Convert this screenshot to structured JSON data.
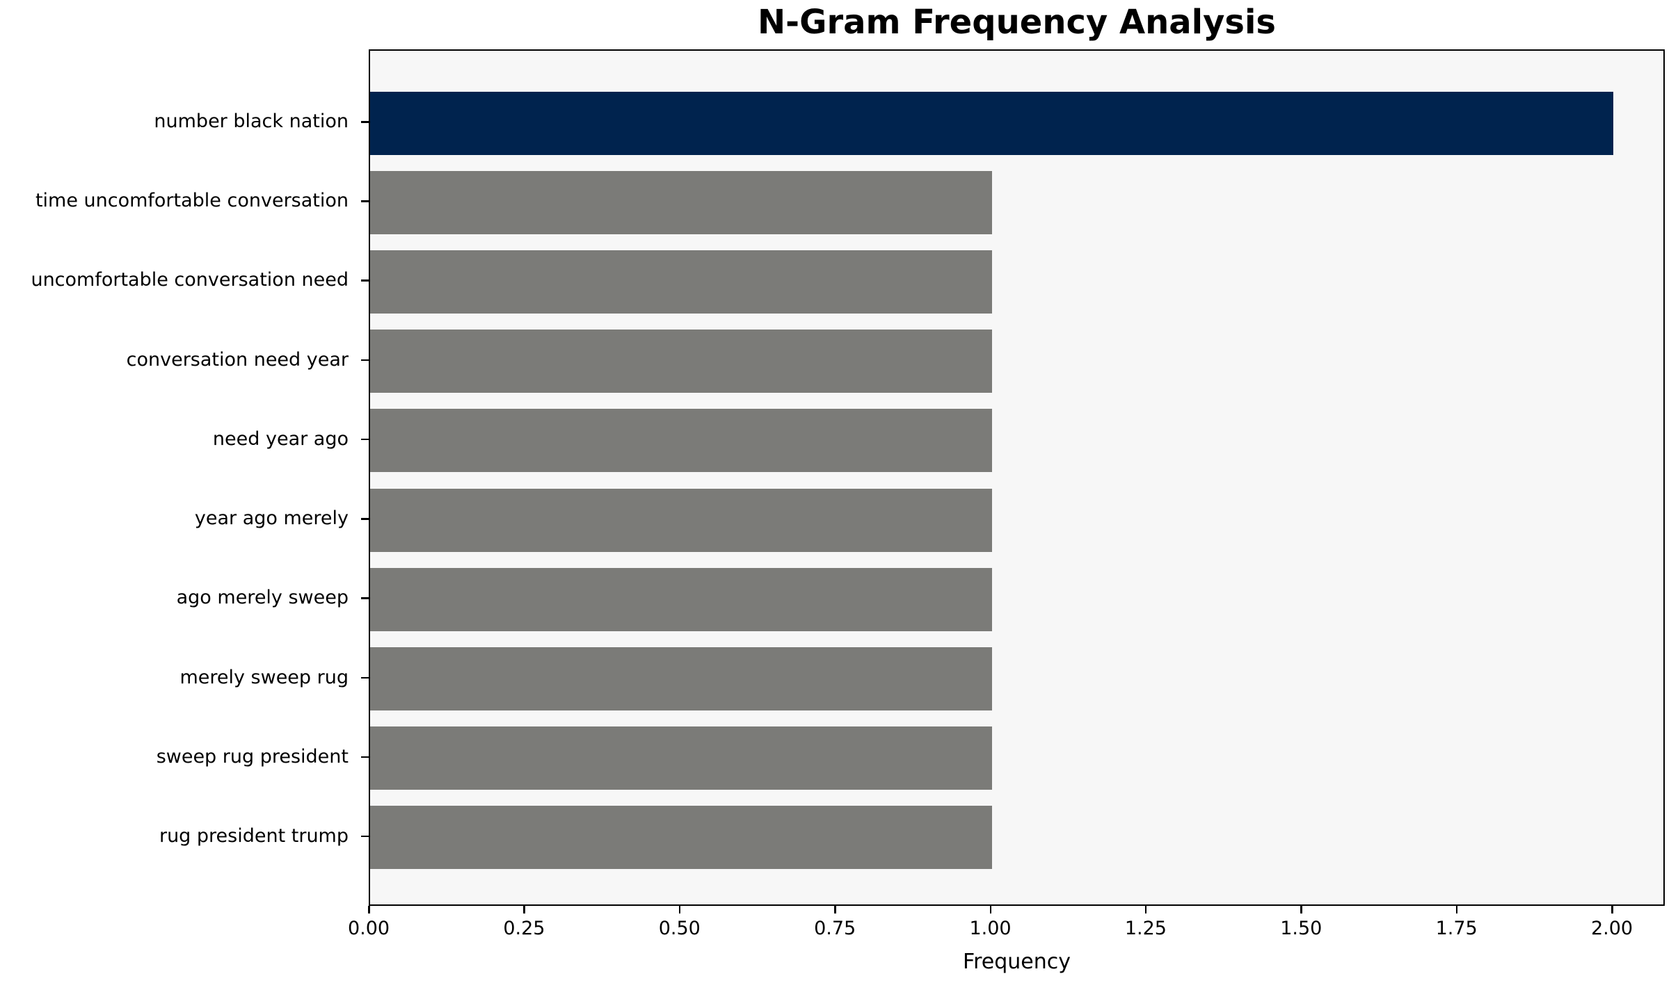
{
  "title": "N-Gram Frequency Analysis",
  "chart_data": {
    "type": "bar",
    "orientation": "horizontal",
    "title": "N-Gram Frequency Analysis",
    "xlabel": "Frequency",
    "ylabel": "",
    "categories": [
      "number black nation",
      "time uncomfortable conversation",
      "uncomfortable conversation need",
      "conversation need year",
      "need year ago",
      "year ago merely",
      "ago merely sweep",
      "merely sweep rug",
      "sweep rug president",
      "rug president trump"
    ],
    "values": [
      2,
      1,
      1,
      1,
      1,
      1,
      1,
      1,
      1,
      1
    ],
    "bar_colors": [
      "#00234e",
      "#7b7b78",
      "#7b7b78",
      "#7b7b78",
      "#7b7b78",
      "#7b7b78",
      "#7b7b78",
      "#7b7b78",
      "#7b7b78",
      "#7b7b78"
    ],
    "x_ticks": [
      {
        "label": "0.00",
        "value": 0.0
      },
      {
        "label": "0.25",
        "value": 0.25
      },
      {
        "label": "0.50",
        "value": 0.5
      },
      {
        "label": "0.75",
        "value": 0.75
      },
      {
        "label": "1.00",
        "value": 1.0
      },
      {
        "label": "1.25",
        "value": 1.25
      },
      {
        "label": "1.50",
        "value": 1.5
      },
      {
        "label": "1.75",
        "value": 1.75
      },
      {
        "label": "2.00",
        "value": 2.0
      }
    ],
    "xlim": [
      0,
      2.085
    ],
    "grid": false,
    "legend": "none",
    "plot_background": "#f7f7f7",
    "figure_background": "#ffffff",
    "highlight_color": "#00234e",
    "default_bar_color": "#7b7b78"
  }
}
